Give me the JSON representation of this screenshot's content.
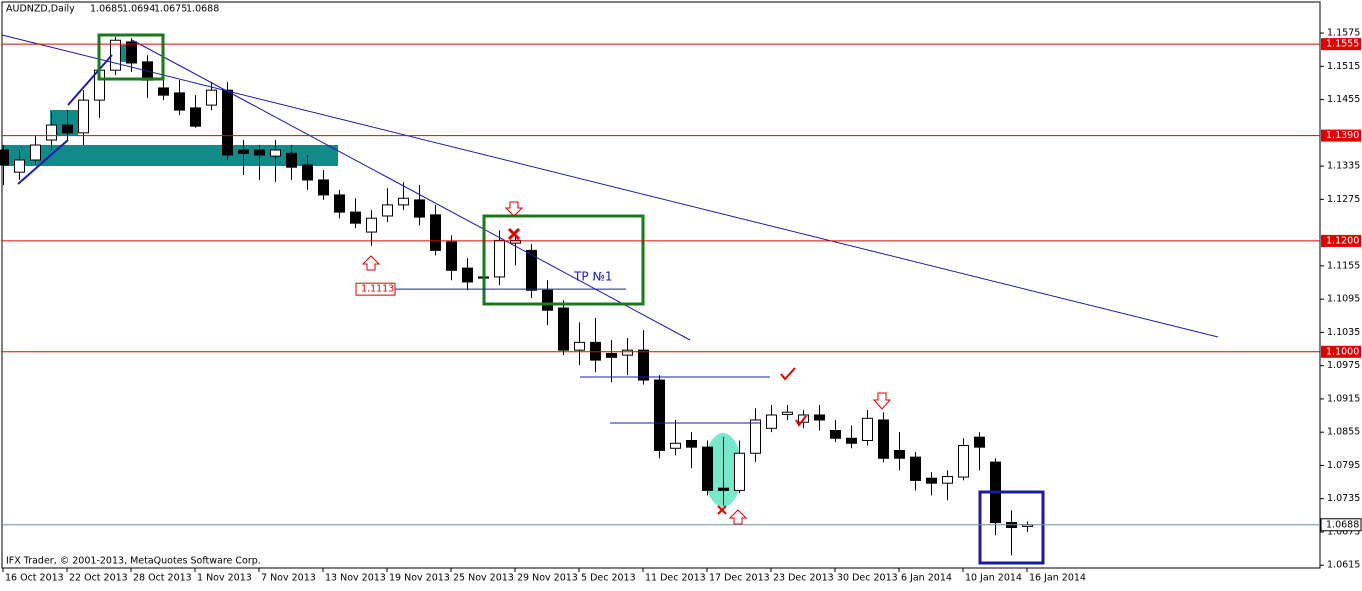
{
  "chart_data": {
    "type": "candlestick",
    "title": "AUDNZD,Daily",
    "footer": "IFX Trader, © 2001-2013, MetaQuotes Software Corp.",
    "categories": [
      "16 Oct 2013",
      null,
      null,
      null,
      "22 Oct 2013",
      null,
      null,
      null,
      "28 Oct 2013",
      null,
      null,
      null,
      "1 Nov 2013",
      null,
      null,
      null,
      "7 Nov 2013",
      null,
      null,
      null,
      "13 Nov 2013",
      null,
      null,
      null,
      "19 Nov 2013",
      null,
      null,
      null,
      "25 Nov 2013",
      null,
      null,
      null,
      "29 Nov 2013",
      null,
      null,
      null,
      "5 Dec 2013",
      null,
      null,
      null,
      "11 Dec 2013",
      null,
      null,
      null,
      "17 Dec 2013",
      null,
      null,
      null,
      "23 Dec 2013",
      null,
      null,
      null,
      "30 Dec 2013",
      null,
      null,
      null,
      "6 Jan 2014",
      null,
      null,
      null,
      "10 Jan 2014",
      null,
      null,
      null,
      "16 Jan 2014"
    ],
    "open": [
      1.1364,
      1.1324,
      1.1346,
      1.1382,
      1.1409,
      1.1395,
      1.1454,
      1.1508,
      1.1559,
      1.1523,
      1.1476,
      1.1467,
      1.144,
      1.1445,
      1.1472,
      1.1364,
      1.1364,
      1.1353,
      1.1358,
      1.1337,
      1.131,
      1.1283,
      1.1252,
      1.1216,
      1.1245,
      1.1265,
      1.1274,
      1.1247,
      1.1198,
      1.1151,
      1.1135,
      1.1135,
      1.1196,
      1.1183,
      1.1111,
      1.1079,
      1.1003,
      1.1017,
      1.0997,
      1.0994,
      1.1003,
      1.0949,
      1.0826,
      1.084,
      1.0828,
      1.0754,
      1.075,
      1.0817,
      1.0862,
      1.0887,
      1.0873,
      1.0886,
      1.0858,
      1.0844,
      1.084,
      1.0877,
      1.0822,
      1.081,
      1.0772,
      1.0763,
      1.0774,
      1.0846,
      1.0801,
      1.0692,
      1.0685
    ],
    "high": [
      1.1373,
      1.1364,
      1.1391,
      1.1432,
      1.1436,
      1.1472,
      1.1535,
      1.1568,
      1.1566,
      1.1535,
      1.1499,
      1.149,
      1.1463,
      1.1487,
      1.1487,
      1.1382,
      1.1373,
      1.1382,
      1.1373,
      1.1355,
      1.1328,
      1.1292,
      1.1277,
      1.1256,
      1.1295,
      1.1306,
      1.1301,
      1.1265,
      1.121,
      1.1169,
      1.1138,
      1.1219,
      1.1219,
      1.1194,
      1.1129,
      1.1093,
      1.1053,
      1.1061,
      1.1021,
      1.1025,
      1.1039,
      1.0958,
      1.0877,
      1.0855,
      1.084,
      1.0846,
      1.084,
      1.0898,
      1.0904,
      1.0904,
      1.0895,
      1.0904,
      1.0877,
      1.0867,
      1.0895,
      1.0891,
      1.0855,
      1.0819,
      1.0783,
      1.0786,
      1.0844,
      1.0855,
      1.0808,
      1.0714,
      1.0694
    ],
    "low": [
      1.1301,
      1.131,
      1.1337,
      1.1364,
      1.1382,
      1.1373,
      1.1422,
      1.1499,
      1.1505,
      1.1458,
      1.1454,
      1.1427,
      1.1404,
      1.1436,
      1.1346,
      1.1319,
      1.131,
      1.1306,
      1.131,
      1.1292,
      1.1274,
      1.1241,
      1.1223,
      1.1191,
      1.1234,
      1.1256,
      1.1228,
      1.1174,
      1.1129,
      1.1111,
      1.1126,
      1.112,
      1.1156,
      1.1097,
      1.1048,
      1.0994,
      1.0976,
      1.0963,
      1.0945,
      1.0958,
      1.0941,
      1.0808,
      1.0813,
      1.079,
      1.0741,
      1.0723,
      1.0745,
      1.0801,
      1.0855,
      1.0877,
      1.0862,
      1.0858,
      1.0837,
      1.0826,
      1.0831,
      1.0801,
      1.0786,
      1.075,
      1.0741,
      1.0732,
      1.0768,
      1.0786,
      1.0669,
      1.0633,
      1.0675
    ],
    "close": [
      1.1337,
      1.1346,
      1.1373,
      1.1409,
      1.1395,
      1.1454,
      1.1508,
      1.1562,
      1.1521,
      1.149,
      1.1463,
      1.1436,
      1.1407,
      1.1472,
      1.1355,
      1.1358,
      1.1355,
      1.1364,
      1.1333,
      1.131,
      1.1283,
      1.1252,
      1.1232,
      1.1241,
      1.1265,
      1.1277,
      1.1243,
      1.1183,
      1.1147,
      1.1126,
      1.1133,
      1.1201,
      1.1201,
      1.1111,
      1.1075,
      1.1003,
      1.1017,
      1.0985,
      1.099,
      1.1003,
      1.0949,
      1.0822,
      1.0835,
      1.0828,
      1.075,
      1.075,
      1.0817,
      1.0877,
      1.0886,
      1.0891,
      1.0886,
      1.0877,
      1.0844,
      1.0835,
      1.088,
      1.0808,
      1.0808,
      1.0768,
      1.0763,
      1.0775,
      1.0831,
      1.0828,
      1.0692,
      1.0683,
      1.0688
    ],
    "up_color": "#ffffff",
    "down_color": "#000000",
    "ylim": [
      1.061,
      1.1631
    ],
    "yticks": [
      1.1575,
      1.1515,
      1.1455,
      1.1335,
      1.1275,
      1.1155,
      1.1095,
      1.1035,
      1.0975,
      1.0915,
      1.0855,
      1.0795,
      1.0735,
      1.0675,
      1.0615
    ],
    "levels": [
      1.1555,
      {
        "value": 1.139,
        "label": "1.1390"
      },
      {
        "value": 1.12,
        "label": "1.1200"
      },
      {
        "value": 1.1,
        "label": "1.1000"
      }
    ],
    "level_color": "#e00000",
    "tp_level": 1.1113,
    "tp_text": "TP №1"
  }
}
